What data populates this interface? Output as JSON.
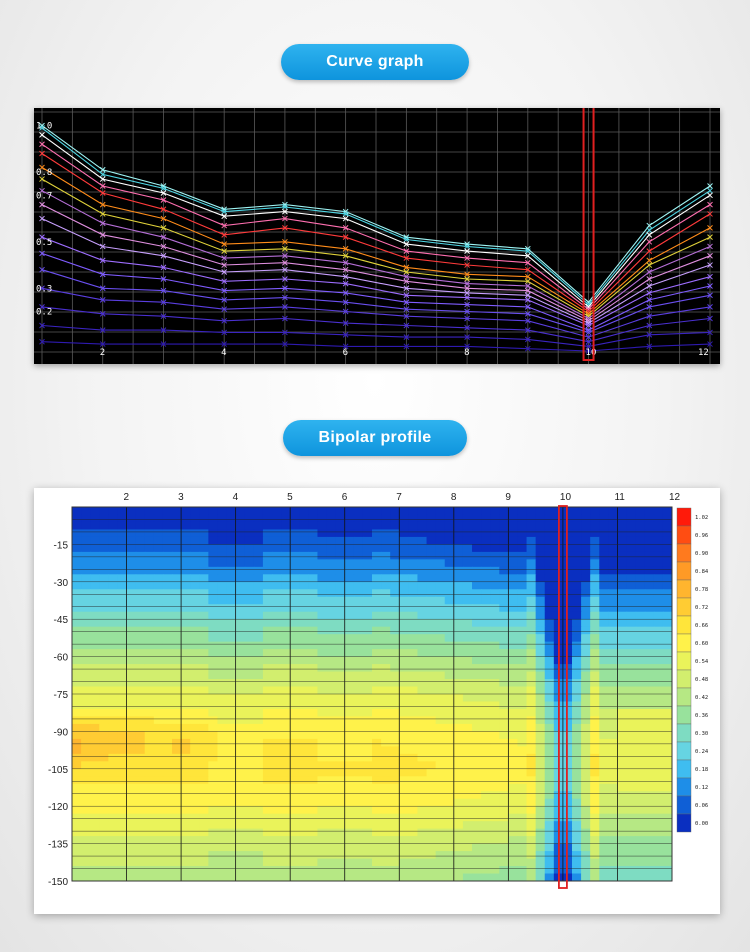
{
  "headings": {
    "curve_graph": "Curve graph",
    "bipolar_profile": "Bipolar profile"
  },
  "chart_data": [
    {
      "type": "line",
      "title": "Curve graph",
      "x": [
        1,
        2,
        3,
        4,
        5,
        6,
        7,
        8,
        9,
        10,
        11,
        12
      ],
      "xlim": [
        1,
        12
      ],
      "ylim": [
        0,
        1.05
      ],
      "x_tick_labels": [
        {
          "x": 2,
          "label": "2"
        },
        {
          "x": 4,
          "label": "4"
        },
        {
          "x": 6,
          "label": "6"
        },
        {
          "x": 8,
          "label": "8"
        },
        {
          "x": 10,
          "label": "10"
        },
        {
          "x": 12,
          "label": "12"
        }
      ],
      "y_tick_labels": [
        {
          "y": 1.0,
          "label": "1.0"
        },
        {
          "y": 0.8,
          "label": "0.8"
        },
        {
          "y": 0.7,
          "label": "0.7"
        },
        {
          "y": 0.5,
          "label": "0.5"
        },
        {
          "y": 0.3,
          "label": "0.3"
        },
        {
          "y": 0.2,
          "label": "0.2"
        }
      ],
      "grid": true,
      "background": "#000000",
      "highlight_x": 10,
      "highlight_color": "#e02020",
      "series": [
        {
          "color": "#9ff5f5",
          "values": [
            1.0,
            0.81,
            0.74,
            0.64,
            0.66,
            0.63,
            0.52,
            0.49,
            0.47,
            0.24,
            0.57,
            0.74
          ]
        },
        {
          "color": "#4fd8e6",
          "values": [
            0.99,
            0.79,
            0.73,
            0.63,
            0.65,
            0.62,
            0.51,
            0.48,
            0.46,
            0.23,
            0.55,
            0.72
          ]
        },
        {
          "color": "#ffffff",
          "values": [
            0.96,
            0.77,
            0.71,
            0.61,
            0.63,
            0.6,
            0.49,
            0.46,
            0.44,
            0.22,
            0.53,
            0.7
          ]
        },
        {
          "color": "#ff6fb0",
          "values": [
            0.92,
            0.74,
            0.68,
            0.57,
            0.6,
            0.56,
            0.46,
            0.43,
            0.41,
            0.21,
            0.5,
            0.66
          ]
        },
        {
          "color": "#ff3b3b",
          "values": [
            0.88,
            0.71,
            0.64,
            0.53,
            0.56,
            0.52,
            0.43,
            0.4,
            0.38,
            0.2,
            0.46,
            0.62
          ]
        },
        {
          "color": "#ff8c1a",
          "values": [
            0.82,
            0.66,
            0.6,
            0.49,
            0.5,
            0.47,
            0.39,
            0.36,
            0.35,
            0.19,
            0.42,
            0.56
          ]
        },
        {
          "color": "#e0d23a",
          "values": [
            0.77,
            0.62,
            0.56,
            0.46,
            0.47,
            0.44,
            0.37,
            0.34,
            0.33,
            0.18,
            0.4,
            0.52
          ]
        },
        {
          "color": "#b66fd8",
          "values": [
            0.72,
            0.58,
            0.52,
            0.43,
            0.44,
            0.41,
            0.35,
            0.32,
            0.31,
            0.17,
            0.37,
            0.48
          ]
        },
        {
          "color": "#e08fe0",
          "values": [
            0.66,
            0.53,
            0.48,
            0.4,
            0.41,
            0.38,
            0.33,
            0.3,
            0.29,
            0.16,
            0.34,
            0.44
          ]
        },
        {
          "color": "#c8a0ff",
          "values": [
            0.6,
            0.48,
            0.44,
            0.37,
            0.38,
            0.35,
            0.3,
            0.28,
            0.27,
            0.15,
            0.31,
            0.4
          ]
        },
        {
          "color": "#9d6dff",
          "values": [
            0.52,
            0.42,
            0.39,
            0.33,
            0.34,
            0.32,
            0.27,
            0.26,
            0.25,
            0.14,
            0.28,
            0.35
          ]
        },
        {
          "color": "#7f5cff",
          "values": [
            0.45,
            0.36,
            0.34,
            0.29,
            0.3,
            0.28,
            0.24,
            0.23,
            0.22,
            0.12,
            0.25,
            0.31
          ]
        },
        {
          "color": "#6a4ff0",
          "values": [
            0.38,
            0.3,
            0.29,
            0.25,
            0.26,
            0.24,
            0.21,
            0.2,
            0.19,
            0.11,
            0.22,
            0.27
          ]
        },
        {
          "color": "#5a3ee0",
          "values": [
            0.3,
            0.25,
            0.24,
            0.21,
            0.22,
            0.2,
            0.18,
            0.17,
            0.16,
            0.09,
            0.18,
            0.22
          ]
        },
        {
          "color": "#4a30d0",
          "values": [
            0.22,
            0.19,
            0.18,
            0.16,
            0.17,
            0.15,
            0.14,
            0.13,
            0.12,
            0.07,
            0.14,
            0.17
          ]
        },
        {
          "color": "#3a24c0",
          "values": [
            0.14,
            0.12,
            0.12,
            0.11,
            0.11,
            0.1,
            0.09,
            0.09,
            0.08,
            0.05,
            0.1,
            0.11
          ]
        },
        {
          "color": "#2e1ab0",
          "values": [
            0.07,
            0.06,
            0.06,
            0.06,
            0.06,
            0.05,
            0.05,
            0.05,
            0.04,
            0.03,
            0.05,
            0.06
          ]
        }
      ]
    },
    {
      "type": "heatmap",
      "title": "Bipolar profile",
      "x_tick_labels": [
        "2",
        "3",
        "4",
        "5",
        "6",
        "7",
        "8",
        "9",
        "10",
        "11",
        "12"
      ],
      "x": [
        1,
        2,
        3,
        4,
        5,
        6,
        7,
        8,
        9,
        10,
        11,
        12
      ],
      "xlim": [
        1,
        12
      ],
      "y_tick_labels": [
        "-15",
        "-30",
        "-45",
        "-60",
        "-75",
        "-90",
        "-105",
        "-120",
        "-135",
        "-150"
      ],
      "ylim": [
        -150,
        0
      ],
      "highlight_x": 10,
      "highlight_color": "#e02020",
      "colorbar_labels": [
        "1.02",
        "0.96",
        "0.90",
        "0.84",
        "0.78",
        "0.72",
        "0.66",
        "0.60",
        "0.54",
        "0.48",
        "0.42",
        "0.36",
        "0.30",
        "0.24",
        "0.18",
        "0.12",
        "0.06",
        "0.00"
      ],
      "colorbar_colors": [
        "#ff1a0a",
        "#ff4d12",
        "#ff7a1e",
        "#ff9a26",
        "#ffb52e",
        "#ffcc33",
        "#ffe53a",
        "#fff24a",
        "#eaf35a",
        "#d2ee6e",
        "#b6e884",
        "#98e29c",
        "#7edcc2",
        "#66d4e2",
        "#3fbdf0",
        "#1e8ee8",
        "#0f5fd6",
        "#0a2fc0"
      ],
      "depth_profile_values": [
        0.0,
        0.06,
        0.18,
        0.3,
        0.42,
        0.54,
        0.62,
        0.66,
        0.6,
        0.5,
        0.42
      ],
      "x_offsets": [
        0.0,
        0.0,
        0.0,
        -0.03,
        0.0,
        -0.02,
        -0.06,
        -0.07,
        -0.05,
        -0.48,
        -0.12,
        -0.12
      ],
      "hotspot_x": [
        1,
        2,
        3
      ],
      "hotspot_y": [
        -95,
        -95,
        -95
      ],
      "hotspot_values": [
        0.78,
        0.74,
        0.72
      ]
    }
  ]
}
